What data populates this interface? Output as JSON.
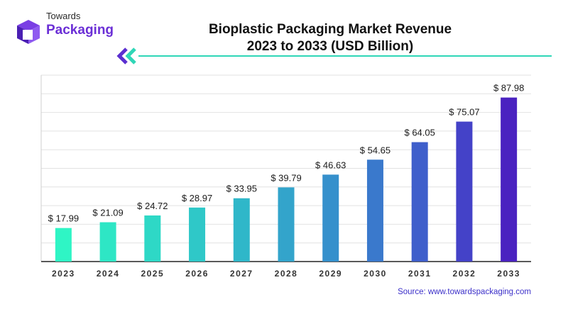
{
  "brand": {
    "line1": "Towards",
    "line2": "Packaging",
    "accent": "#6b2fd6",
    "logo_icon": "cube-icon"
  },
  "title_line1": "Bioplastic Packaging Market Revenue",
  "title_line2": "2023 to 2033 (USD Billion)",
  "source": "Source: www.towardspackaging.com",
  "chart_data": {
    "type": "bar",
    "categories": [
      "2023",
      "2024",
      "2025",
      "2026",
      "2027",
      "2028",
      "2029",
      "2030",
      "2031",
      "2032",
      "2033"
    ],
    "values": [
      17.99,
      21.09,
      24.72,
      28.97,
      33.95,
      39.79,
      46.63,
      54.65,
      64.05,
      75.07,
      87.98
    ],
    "value_labels": [
      "$ 17.99",
      "$ 21.09",
      "$ 24.72",
      "$ 28.97",
      "$ 33.95",
      "$ 39.79",
      "$ 46.63",
      "$ 54.65",
      "$ 64.05",
      "$ 75.07",
      "$ 87.98"
    ],
    "title": "Bioplastic Packaging Market Revenue 2023 to 2033 (USD Billion)",
    "xlabel": "",
    "ylabel": "",
    "ylim": [
      0,
      100
    ],
    "grid": true,
    "colors": [
      "#2ff5c5",
      "#2ee6c5",
      "#2ed8c6",
      "#2fc8c8",
      "#2fb7c9",
      "#33a4cb",
      "#3590cc",
      "#3a79cc",
      "#3f5fcb",
      "#4442c8",
      "#4a22c0"
    ]
  }
}
